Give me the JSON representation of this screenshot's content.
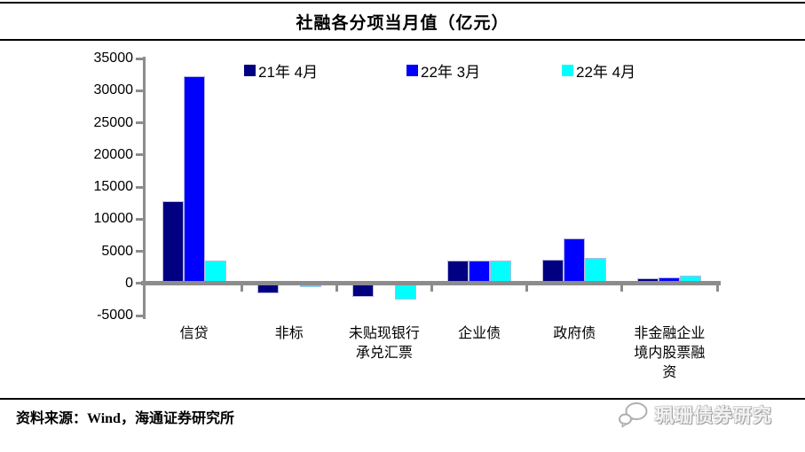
{
  "title": "社融各分项当月值（亿元）",
  "source_note": "资料来源：Wind，海通证券研究所",
  "watermark": {
    "text": "珮珊债券研究",
    "icon": "chat-bubbles-icon"
  },
  "chart_data": {
    "type": "bar",
    "title": "社融各分项当月值（亿元）",
    "categories": [
      "信贷",
      "非标",
      "未贴现银行承兑汇票",
      "企业债",
      "政府债",
      "非金融企业境内股票融资"
    ],
    "series": [
      {
        "name": "21年 4月",
        "color": "#000080",
        "values": [
          12800,
          -1540,
          -2150,
          3600,
          3740,
          810
        ]
      },
      {
        "name": "22年 3月",
        "color": "#0000ff",
        "values": [
          32300,
          -150,
          290,
          3550,
          7050,
          960
        ]
      },
      {
        "name": "22年 4月",
        "color": "#00ffff",
        "values": [
          3620,
          -620,
          -2560,
          3500,
          3910,
          1170
        ]
      }
    ],
    "ylim": [
      -5000,
      35000
    ],
    "ytick_step": 5000,
    "ytick_labels": [
      "35000",
      "30000",
      "25000",
      "20000",
      "15000",
      "10000",
      "5000",
      "0",
      "-5000"
    ],
    "legend_position": "top",
    "grid": false,
    "axis_color": "#8c8c8c"
  }
}
